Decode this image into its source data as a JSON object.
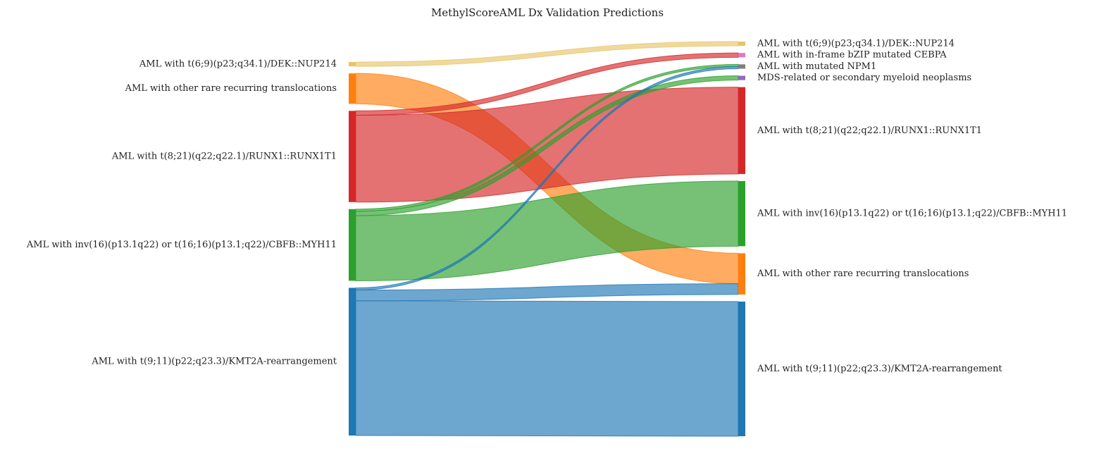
{
  "chart_data": {
    "type": "sankey",
    "title": "MethylScoreAML Dx Validation Predictions",
    "sources": [
      {
        "id": "s_t69",
        "label": "AML with t(6;9)(p23;q34.1)/DEK::NUP214",
        "color": "#e8c468"
      },
      {
        "id": "s_rare",
        "label": "AML with other rare recurring translocations",
        "color": "#ff7f0e"
      },
      {
        "id": "s_t821",
        "label": "AML with t(8;21)(q22;q22.1)/RUNX1::RUNX1T1",
        "color": "#d62728"
      },
      {
        "id": "s_inv16",
        "label": "AML with inv(16)(p13.1q22) or t(16;16)(p13.1;q22)/CBFB::MYH11",
        "color": "#2ca02c"
      },
      {
        "id": "s_t911",
        "label": "AML with t(9;11)(p22;q23.3)/KMT2A-rearrangement",
        "color": "#1f77b4"
      }
    ],
    "targets": [
      {
        "id": "t_t69",
        "label": "AML with t(6;9)(p23;q34.1)/DEK::NUP214",
        "color": "#e8c468"
      },
      {
        "id": "t_cebpa",
        "label": "AML with in-frame bZIP mutated CEBPA",
        "color": "#e377c2"
      },
      {
        "id": "t_npm1",
        "label": "AML with mutated NPM1",
        "color": "#7f7f7f"
      },
      {
        "id": "t_mds",
        "label": "MDS-related or secondary myeloid neoplasms",
        "color": "#9467bd"
      },
      {
        "id": "t_t821",
        "label": "AML with t(8;21)(q22;q22.1)/RUNX1::RUNX1T1",
        "color": "#d62728"
      },
      {
        "id": "t_inv16",
        "label": "AML with inv(16)(p13.1q22) or t(16;16)(p13.1;q22)/CBFB::MYH11",
        "color": "#2ca02c"
      },
      {
        "id": "t_rare",
        "label": "AML with other rare recurring translocations",
        "color": "#ff7f0e"
      },
      {
        "id": "t_t911",
        "label": "AML with t(9;11)(p22;q23.3)/KMT2A-rearrangement",
        "color": "#1f77b4"
      }
    ],
    "flows": [
      {
        "source": "s_t69",
        "target": "t_t69",
        "value": 1
      },
      {
        "source": "s_rare",
        "target": "t_rare",
        "value": 7
      },
      {
        "source": "s_t821",
        "target": "t_cebpa",
        "value": 1
      },
      {
        "source": "s_t821",
        "target": "t_t821",
        "value": 20
      },
      {
        "source": "s_inv16",
        "target": "t_npm1",
        "value": 0.5
      },
      {
        "source": "s_inv16",
        "target": "t_mds",
        "value": 1
      },
      {
        "source": "s_inv16",
        "target": "t_inv16",
        "value": 15
      },
      {
        "source": "s_t911",
        "target": "t_npm1",
        "value": 0.5
      },
      {
        "source": "s_t911",
        "target": "t_rare",
        "value": 2.5
      },
      {
        "source": "s_t911",
        "target": "t_t911",
        "value": 31
      }
    ]
  }
}
